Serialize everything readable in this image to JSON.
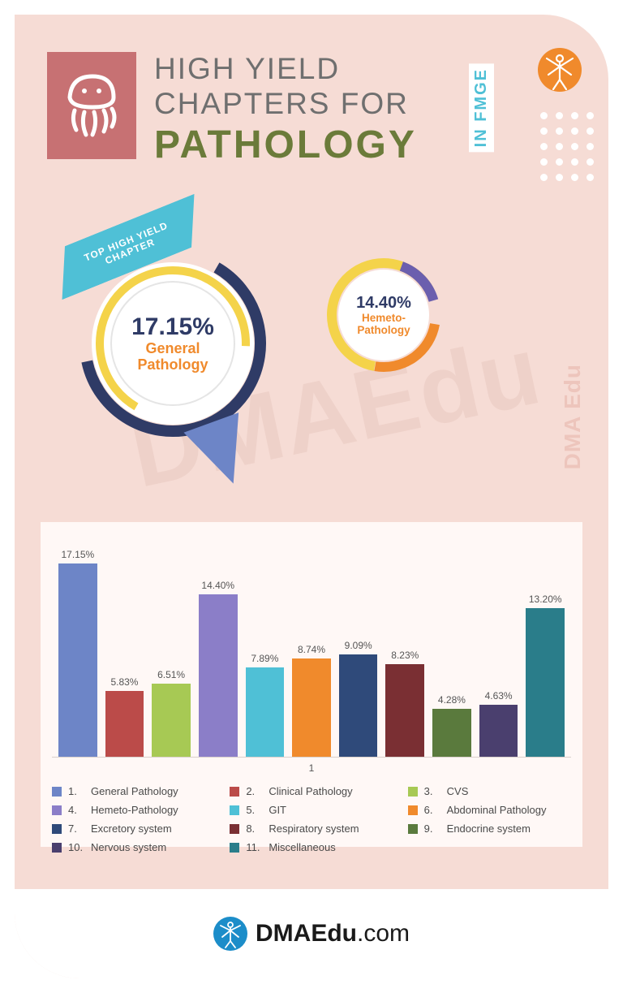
{
  "header": {
    "line1": "HIGH YIELD",
    "line2": "CHAPTERS FOR",
    "line3": "PATHOLOGY",
    "badge": "IN FMGE"
  },
  "banner": "TOP HIGH YIELD CHAPTER",
  "donut1": {
    "percent": "17.15%",
    "label": "General Pathology",
    "ring_colors": [
      "#2f3b66",
      "#f4d34a",
      "#6d85c7"
    ],
    "bg": "#ffffff"
  },
  "donut2": {
    "percent": "14.40%",
    "label": "Hemeto-Pathology",
    "ring_colors": [
      "#6b5fae",
      "#f08a2c",
      "#f4d34a"
    ],
    "bg": "#ffffff"
  },
  "watermark_side": "DMA Edu",
  "watermark_big": "DMAEdu",
  "chart": {
    "type": "bar",
    "x_label": "1",
    "y_max": 18,
    "background": "#fff8f6",
    "label_fontsize": 12,
    "bars": [
      {
        "pct": 17.15,
        "label": "17.15%",
        "color": "#6d85c7"
      },
      {
        "pct": 5.83,
        "label": "5.83%",
        "color": "#bb4b49"
      },
      {
        "pct": 6.51,
        "label": "6.51%",
        "color": "#a7c954"
      },
      {
        "pct": 14.4,
        "label": "14.40%",
        "color": "#8b7ec8"
      },
      {
        "pct": 7.89,
        "label": "7.89%",
        "color": "#4fc0d6"
      },
      {
        "pct": 8.74,
        "label": "8.74%",
        "color": "#f08a2c"
      },
      {
        "pct": 9.09,
        "label": "9.09%",
        "color": "#2f4a7a"
      },
      {
        "pct": 8.23,
        "label": "8.23%",
        "color": "#7a2f33"
      },
      {
        "pct": 4.28,
        "label": "4.28%",
        "color": "#5a7a3d"
      },
      {
        "pct": 4.63,
        "label": "4.63%",
        "color": "#4a3f6e"
      },
      {
        "pct": 13.2,
        "label": "13.20%",
        "color": "#2a7d8a"
      }
    ],
    "legend": [
      {
        "n": "1.",
        "name": "General Pathology",
        "color": "#6d85c7"
      },
      {
        "n": "2.",
        "name": "Clinical Pathology",
        "color": "#bb4b49"
      },
      {
        "n": "3.",
        "name": "CVS",
        "color": "#a7c954"
      },
      {
        "n": "4.",
        "name": "Hemeto-Pathology",
        "color": "#8b7ec8"
      },
      {
        "n": "5.",
        "name": "GIT",
        "color": "#4fc0d6"
      },
      {
        "n": "6.",
        "name": "Abdominal Pathology",
        "color": "#f08a2c"
      },
      {
        "n": "7.",
        "name": "Excretory system",
        "color": "#2f4a7a"
      },
      {
        "n": "8.",
        "name": "Respiratory system",
        "color": "#7a2f33"
      },
      {
        "n": "9.",
        "name": "Endocrine system",
        "color": "#5a7a3d"
      },
      {
        "n": "10.",
        "name": "Nervous system",
        "color": "#4a3f6e"
      },
      {
        "n": "11.",
        "name": "Miscellaneous",
        "color": "#2a7d8a"
      }
    ]
  },
  "footer": {
    "brand_bold": "DMAEdu",
    "brand_rest": ".com"
  },
  "colors": {
    "card_bg": "#f6dcd5",
    "header_icon_bg": "#c77173",
    "title_gray": "#6f6f6f",
    "title_olive": "#6b7b3a",
    "banner_bg": "#4fc0d6",
    "logo_orange": "#f08a2c",
    "footer_logo_bg": "#1c8dc9"
  }
}
